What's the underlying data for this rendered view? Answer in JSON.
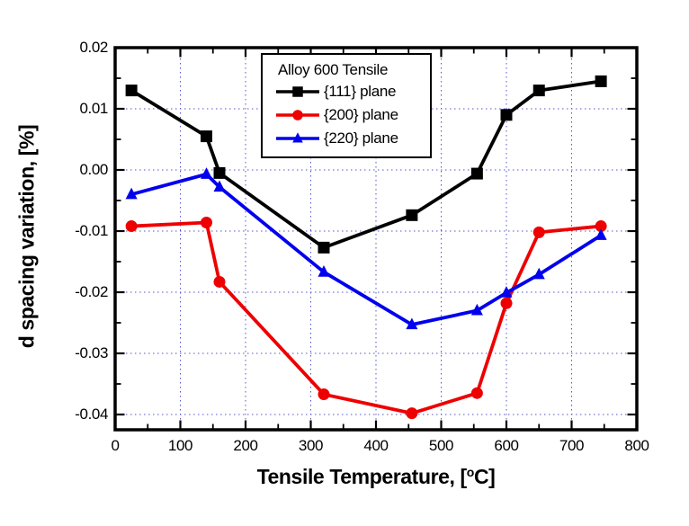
{
  "figure": {
    "background": "#ffffff",
    "axis_color": "#000000",
    "grid_color": "#5555cc"
  },
  "chart_data": {
    "type": "line",
    "title": "",
    "xlabel": {
      "prefix": "Tensile Temperature, [",
      "sup": "o",
      "suffix": "C]"
    },
    "ylabel": "d spacing variation, [%]",
    "xlim": [
      0,
      800
    ],
    "ylim": [
      -0.0425,
      0.02
    ],
    "grid": {
      "show": true,
      "style": "dotted",
      "color": "#5555cc",
      "x_lines": [
        100,
        200,
        300,
        400,
        500,
        600,
        700
      ],
      "y_lines": [
        0.01,
        0,
        -0.01,
        -0.02,
        -0.03,
        -0.04
      ]
    },
    "x_major_ticks": [
      0,
      100,
      200,
      300,
      400,
      500,
      600,
      700,
      800
    ],
    "x_tick_labels": [
      "0",
      "100",
      "200",
      "300",
      "400",
      "500",
      "600",
      "700",
      "800"
    ],
    "x_minor_ticks": [
      50,
      150,
      250,
      350,
      450,
      550,
      650,
      750
    ],
    "y_major_ticks": [
      0.02,
      0.01,
      0,
      -0.01,
      -0.02,
      -0.03,
      -0.04
    ],
    "y_tick_labels": [
      "0.02",
      "0.01",
      "0.00",
      "-0.01",
      "-0.02",
      "-0.03",
      "-0.04"
    ],
    "y_minor_ticks": [
      0.015,
      0.005,
      -0.005,
      -0.015,
      -0.025,
      -0.035
    ],
    "legend": {
      "title": "Alloy 600 Tensile",
      "position": "inside-top",
      "entries": [
        {
          "label": "{111} plane",
          "color": "#000000",
          "marker": "square"
        },
        {
          "label": "{200} plane",
          "color": "#ee0000",
          "marker": "circle"
        },
        {
          "label": "{220} plane",
          "color": "#0000ee",
          "marker": "triangle"
        }
      ]
    },
    "x": [
      25,
      140,
      160,
      320,
      455,
      555,
      600,
      650,
      745
    ],
    "series": [
      {
        "name": "{111} plane",
        "marker": "square",
        "color": "#000000",
        "values": [
          0.013,
          0.0055,
          -0.0005,
          -0.0127,
          -0.0074,
          -0.0006,
          0.009,
          0.013,
          0.0145
        ]
      },
      {
        "name": "{200} plane",
        "marker": "circle",
        "color": "#ee0000",
        "values": [
          -0.0092,
          -0.0086,
          -0.0183,
          -0.0367,
          -0.0398,
          -0.0365,
          -0.0218,
          -0.0102,
          -0.0092
        ]
      },
      {
        "name": "{220} plane",
        "marker": "triangle",
        "color": "#0000ee",
        "values": [
          -0.004,
          -0.0007,
          -0.0028,
          -0.0167,
          -0.0253,
          -0.023,
          -0.0201,
          -0.0171,
          -0.0107
        ]
      }
    ]
  }
}
